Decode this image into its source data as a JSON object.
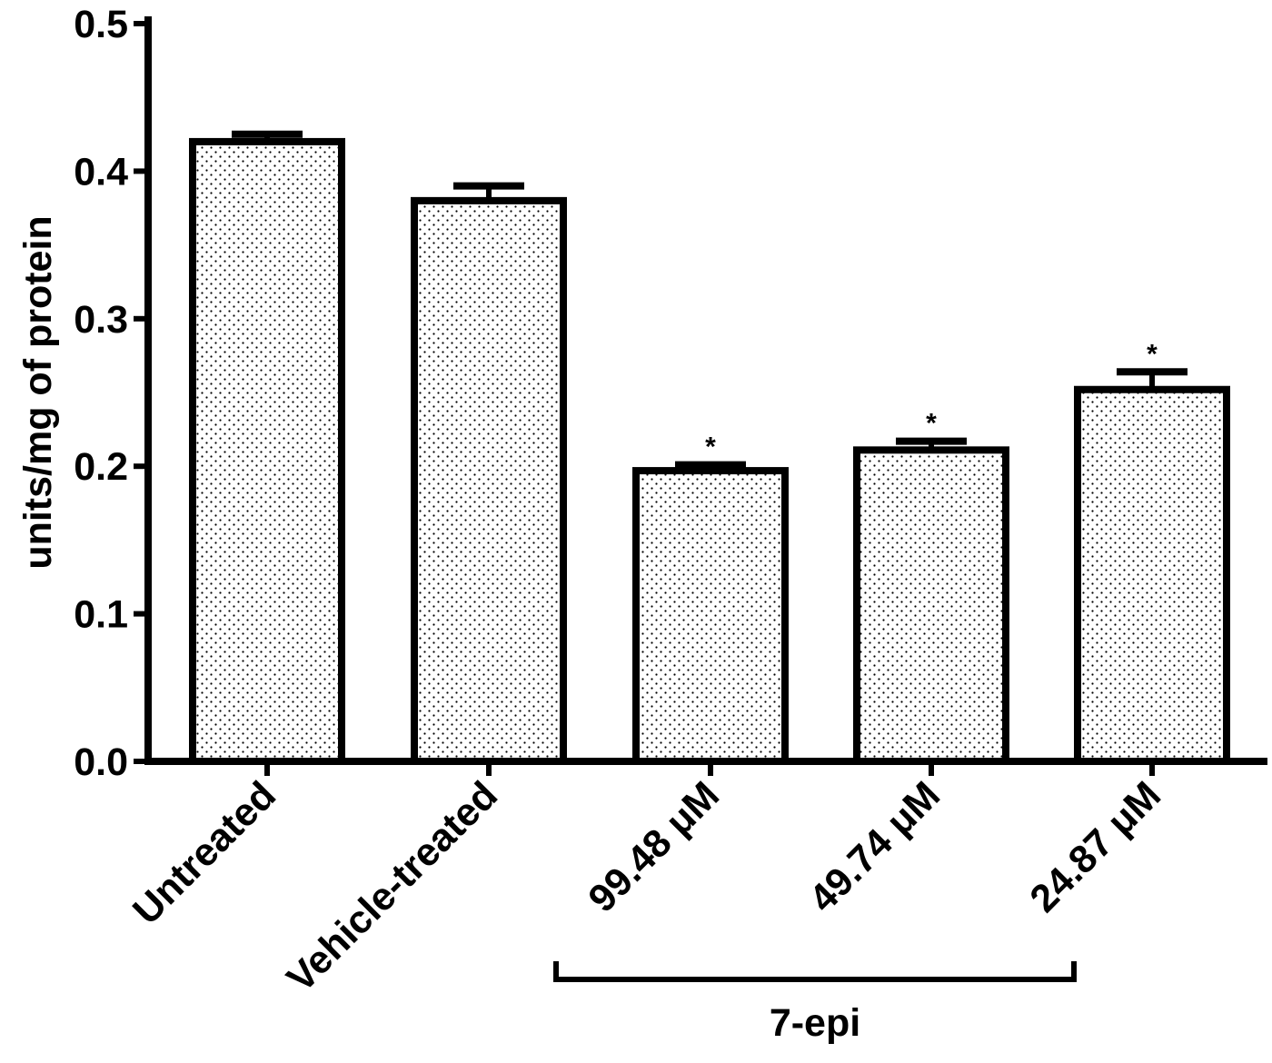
{
  "chart_data": {
    "type": "bar",
    "title": "",
    "xlabel": "",
    "ylabel": "units/mg of protein",
    "ylim": [
      0,
      0.5
    ],
    "yticks": [
      "0.0",
      "0.1",
      "0.2",
      "0.3",
      "0.4",
      "0.5"
    ],
    "grid": false,
    "legend": "none",
    "categories": [
      "Untreated",
      "Vehicle-treated",
      "99.48 μM",
      "49.74 μM",
      "24.87 μM"
    ],
    "values": [
      0.42,
      0.38,
      0.197,
      0.211,
      0.252
    ],
    "error": [
      0.005,
      0.01,
      0.004,
      0.006,
      0.012
    ],
    "significance": [
      "",
      "",
      "*",
      "*",
      "*"
    ],
    "group_bracket": {
      "label": "7-epi",
      "from_category": 2,
      "to_category": 4
    },
    "bar_fill": "dotted",
    "colors": {
      "bar_stroke": "#000000",
      "bar_fill": "#ffffff",
      "dot": "#000000"
    }
  }
}
